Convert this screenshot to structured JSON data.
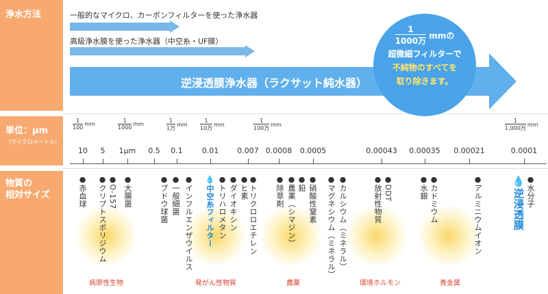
{
  "sidebar": {
    "method": "浄水方法",
    "unit": "単位：μm",
    "unit_sub": "（マイクロメートル）",
    "substances": "物質の\n相対サイズ"
  },
  "methods": {
    "line1": "一般的なマイクロ、カーボンフィルターを使った浄水器",
    "line2": "高級浄水膜を使った浄水器（中空糸・UF膜）",
    "main": "逆浸透膜浄水器（ラクサット純水器）"
  },
  "circle": {
    "num": "1",
    "den": "1000万",
    "unit": "mmの",
    "line2": "超微細フィルターで",
    "line3": "不純物のすべてを",
    "line4": "取り除きます。"
  },
  "scale_marks": [
    {
      "num": "1",
      "den": "100",
      "unit": "mm"
    },
    {
      "num": "1",
      "den": "1000",
      "unit": "mm"
    },
    {
      "num": "1",
      "den": "1万",
      "unit": "mm"
    },
    {
      "num": "1",
      "den": "10万",
      "unit": "mm"
    },
    {
      "num": "1",
      "den": "100万",
      "unit": "mm"
    },
    {
      "num": "1",
      "den": "1,000万",
      "unit": "mm"
    }
  ],
  "ticks": [
    "10",
    "5",
    "1μm",
    "0.5",
    "0.1",
    "0.01",
    "0.007",
    "0.0008",
    "0.0005",
    "0.00043",
    "0.00035",
    "0.00021",
    "0.0001"
  ],
  "substances": [
    "●赤血球",
    "●クリプトスポリジウム",
    "●O-157",
    "●大腸菌",
    "●ブドウ球菌",
    "●一般細菌",
    "●インフルエンザウイルス",
    "中空糸フィルター",
    "●トリハロメタン",
    "●ダイオキシン",
    "●ヒ素",
    "●トリクロロエチレン",
    "●除草剤",
    "●農薬（シマジン）",
    "●鉛",
    "●硝酸性窒素",
    "●マグネシウム（ミネラル）",
    "●カルシウム（ミネラル）",
    "●放射性物質",
    "●DDT",
    "●水銀",
    "●カドミウム",
    "●アルミニウムイオン",
    "逆浸透膜",
    "●水分子"
  ],
  "categories": [
    "病原性生物",
    "発がん性物質",
    "農薬",
    "環境ホルモン",
    "貴金属"
  ],
  "colors": {
    "sidebar": "#f7a96f",
    "arrow": "#60b0ec",
    "circle": "#4aa3e8",
    "highlight": "#1e88d8",
    "circle_accent": "#ffe66b",
    "category": "#d9452f"
  }
}
